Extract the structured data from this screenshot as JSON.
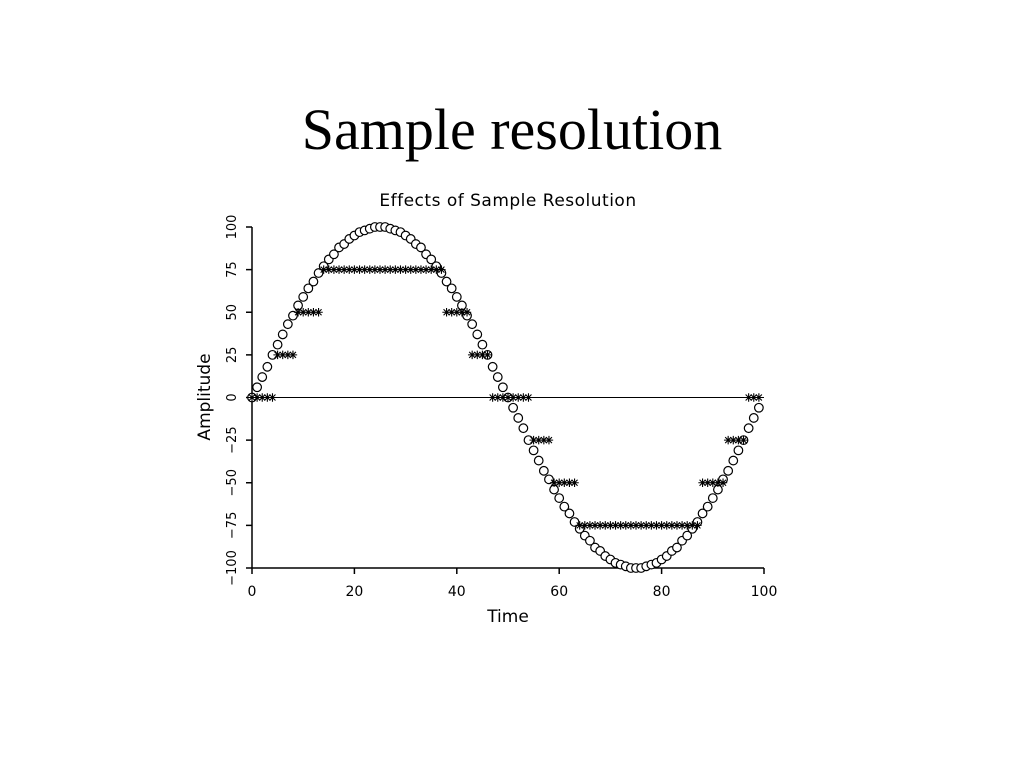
{
  "slide": {
    "title": "Sample resolution"
  },
  "chart_data": {
    "type": "scatter",
    "title": "Effects of Sample Resolution",
    "xlabel": "Time",
    "ylabel": "Amplitude",
    "xlim": [
      0,
      100
    ],
    "ylim": [
      -100,
      100
    ],
    "xticks": [
      0,
      20,
      40,
      60,
      80,
      100
    ],
    "yticks": [
      -100,
      -75,
      -50,
      -25,
      0,
      25,
      50,
      75,
      100
    ],
    "grid": false,
    "reference_lines": [
      {
        "axis": "y",
        "value": 0
      }
    ],
    "series": [
      {
        "marker": "circle",
        "x": [
          0,
          1,
          2,
          3,
          4,
          5,
          6,
          7,
          8,
          9,
          10,
          11,
          12,
          13,
          14,
          15,
          16,
          17,
          18,
          19,
          20,
          21,
          22,
          23,
          24,
          25,
          26,
          27,
          28,
          29,
          30,
          31,
          32,
          33,
          34,
          35,
          36,
          37,
          38,
          39,
          40,
          41,
          42,
          43,
          44,
          45,
          46,
          47,
          48,
          49,
          50,
          51,
          52,
          53,
          54,
          55,
          56,
          57,
          58,
          59,
          60,
          61,
          62,
          63,
          64,
          65,
          66,
          67,
          68,
          69,
          70,
          71,
          72,
          73,
          74,
          75,
          76,
          77,
          78,
          79,
          80,
          81,
          82,
          83,
          84,
          85,
          86,
          87,
          88,
          89,
          90,
          91,
          92,
          93,
          94,
          95,
          96,
          97,
          98,
          99
        ],
        "y": [
          0,
          6,
          12,
          18,
          25,
          31,
          37,
          43,
          48,
          54,
          59,
          64,
          68,
          73,
          77,
          81,
          84,
          88,
          90,
          93,
          95,
          97,
          98,
          99,
          100,
          100,
          100,
          99,
          98,
          97,
          95,
          93,
          90,
          88,
          84,
          81,
          77,
          73,
          68,
          64,
          59,
          54,
          48,
          43,
          37,
          31,
          25,
          18,
          12,
          6,
          0,
          -6,
          -12,
          -18,
          -25,
          -31,
          -37,
          -43,
          -48,
          -54,
          -59,
          -64,
          -68,
          -73,
          -77,
          -81,
          -84,
          -88,
          -90,
          -93,
          -95,
          -97,
          -98,
          -99,
          -100,
          -100,
          -100,
          -99,
          -98,
          -97,
          -95,
          -93,
          -90,
          -88,
          -84,
          -81,
          -77,
          -73,
          -68,
          -64,
          -59,
          -54,
          -48,
          -43,
          -37,
          -31,
          -25,
          -18,
          -12,
          -6
        ]
      },
      {
        "marker": "asterisk",
        "x": [
          0,
          1,
          2,
          3,
          4,
          5,
          6,
          7,
          8,
          9,
          10,
          11,
          12,
          13,
          14,
          15,
          16,
          17,
          18,
          19,
          20,
          21,
          22,
          23,
          24,
          25,
          26,
          27,
          28,
          29,
          30,
          31,
          32,
          33,
          34,
          35,
          36,
          37,
          38,
          39,
          40,
          41,
          42,
          43,
          44,
          45,
          46,
          47,
          48,
          49,
          50,
          51,
          52,
          53,
          54,
          55,
          56,
          57,
          58,
          59,
          60,
          61,
          62,
          63,
          64,
          65,
          66,
          67,
          68,
          69,
          70,
          71,
          72,
          73,
          74,
          75,
          76,
          77,
          78,
          79,
          80,
          81,
          82,
          83,
          84,
          85,
          86,
          87,
          88,
          89,
          90,
          91,
          92,
          93,
          94,
          95,
          96,
          97,
          98,
          99
        ],
        "y": [
          0,
          0,
          0,
          0,
          0,
          25,
          25,
          25,
          25,
          50,
          50,
          50,
          50,
          50,
          75,
          75,
          75,
          75,
          75,
          75,
          75,
          75,
          75,
          75,
          75,
          75,
          75,
          75,
          75,
          75,
          75,
          75,
          75,
          75,
          75,
          75,
          75,
          75,
          50,
          50,
          50,
          50,
          50,
          25,
          25,
          25,
          25,
          0,
          0,
          0,
          0,
          0,
          0,
          0,
          0,
          -25,
          -25,
          -25,
          -25,
          -50,
          -50,
          -50,
          -50,
          -50,
          -75,
          -75,
          -75,
          -75,
          -75,
          -75,
          -75,
          -75,
          -75,
          -75,
          -75,
          -75,
          -75,
          -75,
          -75,
          -75,
          -75,
          -75,
          -75,
          -75,
          -75,
          -75,
          -75,
          -75,
          -50,
          -50,
          -50,
          -50,
          -50,
          -25,
          -25,
          -25,
          -25,
          0,
          0,
          0
        ]
      }
    ]
  }
}
